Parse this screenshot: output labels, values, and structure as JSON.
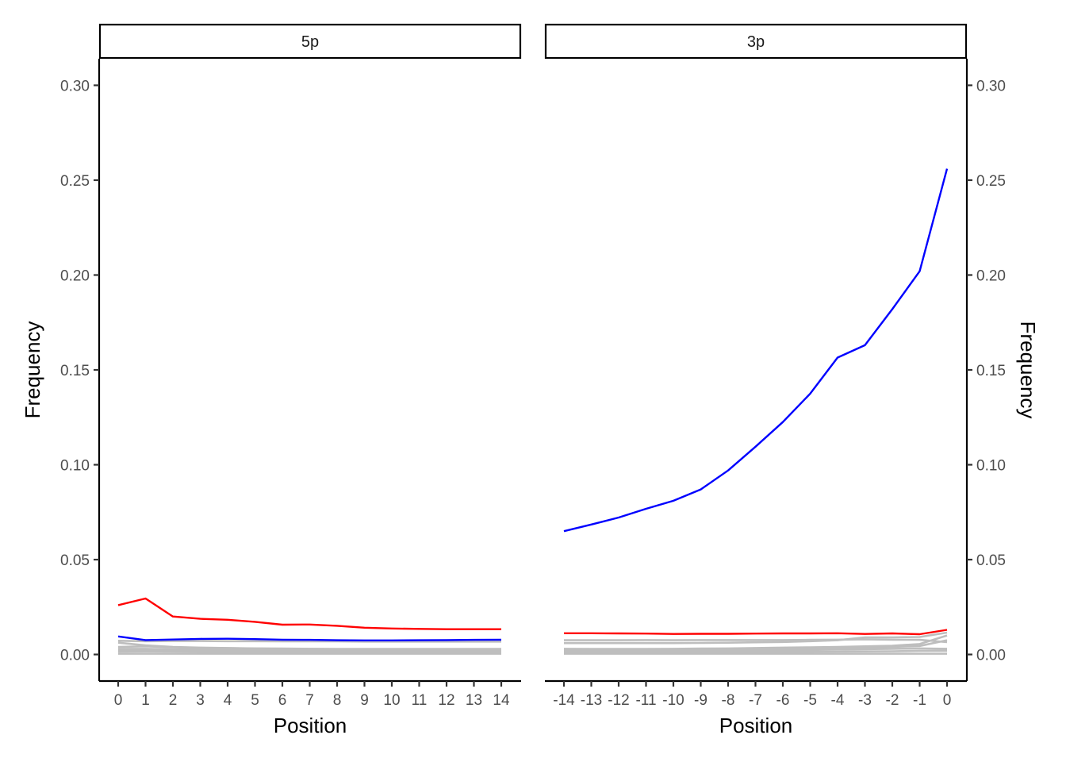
{
  "chart_data": [
    {
      "type": "line",
      "panel": "5p",
      "xlabel": "Position",
      "ylabel": "Frequency",
      "ylim": [
        -0.014,
        0.314
      ],
      "y_ticks": [
        "0.00",
        "0.05",
        "0.10",
        "0.15",
        "0.20",
        "0.25",
        "0.30"
      ],
      "x": [
        0,
        1,
        2,
        3,
        4,
        5,
        6,
        7,
        8,
        9,
        10,
        11,
        12,
        13,
        14
      ],
      "x_ticks": [
        "0",
        "1",
        "2",
        "3",
        "4",
        "5",
        "6",
        "7",
        "8",
        "9",
        "10",
        "11",
        "12",
        "13",
        "14"
      ],
      "series": [
        {
          "color": "#ff0000",
          "values": [
            0.026,
            0.0295,
            0.02,
            0.0188,
            0.0183,
            0.0172,
            0.0157,
            0.0158,
            0.0151,
            0.0141,
            0.0137,
            0.0135,
            0.0133,
            0.0133,
            0.0133
          ]
        },
        {
          "color": "#0000ff",
          "values": [
            0.0095,
            0.0076,
            0.0079,
            0.0082,
            0.0083,
            0.0081,
            0.0078,
            0.0077,
            0.0075,
            0.0074,
            0.0074,
            0.0075,
            0.0076,
            0.0077,
            0.0078
          ]
        },
        {
          "color": "#bebebe",
          "values": [
            0.0072,
            0.007,
            0.0071,
            0.0071,
            0.007,
            0.007,
            0.0069,
            0.0069,
            0.0069,
            0.0068,
            0.0068,
            0.0068,
            0.0068,
            0.0068,
            0.0068
          ]
        },
        {
          "color": "#bebebe",
          "values": [
            0.0062,
            0.0048,
            0.004,
            0.0036,
            0.0034,
            0.0032,
            0.0031,
            0.003,
            0.0029,
            0.0029,
            0.0029,
            0.0029,
            0.0029,
            0.0029,
            0.0029
          ]
        },
        {
          "color": "#bebebe",
          "values": [
            0.004,
            0.0043,
            0.0038,
            0.0034,
            0.0033,
            0.0031,
            0.003,
            0.0029,
            0.0028,
            0.0028,
            0.0028,
            0.0028,
            0.0028,
            0.0028,
            0.0028
          ]
        },
        {
          "color": "#bebebe",
          "values": [
            0.003,
            0.003,
            0.0027,
            0.0026,
            0.0025,
            0.0024,
            0.0023,
            0.0022,
            0.0022,
            0.0022,
            0.0022,
            0.0022,
            0.0022,
            0.0022,
            0.0022
          ]
        },
        {
          "color": "#bebebe",
          "values": [
            0.0022,
            0.0024,
            0.0022,
            0.0021,
            0.002,
            0.0019,
            0.0018,
            0.0018,
            0.0018,
            0.0018,
            0.0018,
            0.0018,
            0.0018,
            0.0018,
            0.0018
          ]
        },
        {
          "color": "#bebebe",
          "values": [
            0.0015,
            0.0016,
            0.0015,
            0.0014,
            0.0014,
            0.0013,
            0.0013,
            0.0013,
            0.0013,
            0.0013,
            0.0013,
            0.0013,
            0.0013,
            0.0013,
            0.0013
          ]
        },
        {
          "color": "#bebebe",
          "values": [
            0.0004,
            0.0004,
            0.0004,
            0.0004,
            0.0004,
            0.0004,
            0.0004,
            0.0004,
            0.0004,
            0.0004,
            0.0004,
            0.0004,
            0.0004,
            0.0004,
            0.0004
          ]
        }
      ]
    },
    {
      "type": "line",
      "panel": "3p",
      "xlabel": "Position",
      "ylabel": "Frequency",
      "ylim": [
        -0.014,
        0.314
      ],
      "y_ticks": [
        "0.00",
        "0.05",
        "0.10",
        "0.15",
        "0.20",
        "0.25",
        "0.30"
      ],
      "x": [
        -14,
        -13,
        -12,
        -11,
        -10,
        -9,
        -8,
        -7,
        -6,
        -5,
        -4,
        -3,
        -2,
        -1,
        0
      ],
      "x_ticks": [
        "-14",
        "-13",
        "-12",
        "-11",
        "-10",
        "-9",
        "-8",
        "-7",
        "-6",
        "-5",
        "-4",
        "-3",
        "-2",
        "-1",
        "0"
      ],
      "series": [
        {
          "color": "#0000ff",
          "values": [
            0.065,
            0.0685,
            0.0722,
            0.0768,
            0.081,
            0.087,
            0.097,
            0.1095,
            0.1225,
            0.1375,
            0.1565,
            0.163,
            0.182,
            0.202,
            0.256
          ]
        },
        {
          "color": "#ff0000",
          "values": [
            0.0112,
            0.0112,
            0.0111,
            0.011,
            0.0108,
            0.0109,
            0.0109,
            0.011,
            0.0111,
            0.0111,
            0.0112,
            0.0108,
            0.0111,
            0.0107,
            0.013
          ]
        },
        {
          "color": "#bebebe",
          "values": [
            0.0075,
            0.0075,
            0.0075,
            0.0076,
            0.0075,
            0.0076,
            0.0076,
            0.0076,
            0.0076,
            0.0077,
            0.0078,
            0.008,
            0.0078,
            0.0077,
            0.0065
          ]
        },
        {
          "color": "#bebebe",
          "values": [
            0.006,
            0.006,
            0.006,
            0.006,
            0.006,
            0.0061,
            0.0062,
            0.0064,
            0.0066,
            0.007,
            0.0075,
            0.009,
            0.009,
            0.0092,
            0.0115
          ]
        },
        {
          "color": "#bebebe",
          "values": [
            0.003,
            0.0029,
            0.0029,
            0.0029,
            0.003,
            0.0031,
            0.0032,
            0.0034,
            0.0036,
            0.0038,
            0.004,
            0.0043,
            0.0046,
            0.0055,
            0.01
          ]
        },
        {
          "color": "#bebebe",
          "values": [
            0.0025,
            0.0024,
            0.0024,
            0.0024,
            0.0024,
            0.0025,
            0.0026,
            0.0027,
            0.0029,
            0.0031,
            0.0034,
            0.0037,
            0.004,
            0.0045,
            0.0075
          ]
        },
        {
          "color": "#bebebe",
          "values": [
            0.0018,
            0.0018,
            0.0018,
            0.0018,
            0.0018,
            0.0019,
            0.002,
            0.0021,
            0.0022,
            0.0024,
            0.0026,
            0.0028,
            0.003,
            0.0032,
            0.003
          ]
        },
        {
          "color": "#bebebe",
          "values": [
            0.0012,
            0.0012,
            0.0012,
            0.0012,
            0.0012,
            0.0012,
            0.0012,
            0.0013,
            0.0013,
            0.0014,
            0.0015,
            0.0016,
            0.0017,
            0.0019,
            0.002
          ]
        },
        {
          "color": "#bebebe",
          "values": [
            0.0004,
            0.0004,
            0.0004,
            0.0004,
            0.0004,
            0.0004,
            0.0004,
            0.0004,
            0.0004,
            0.0004,
            0.0004,
            0.0004,
            0.0004,
            0.0004,
            0.0004
          ]
        }
      ]
    }
  ]
}
